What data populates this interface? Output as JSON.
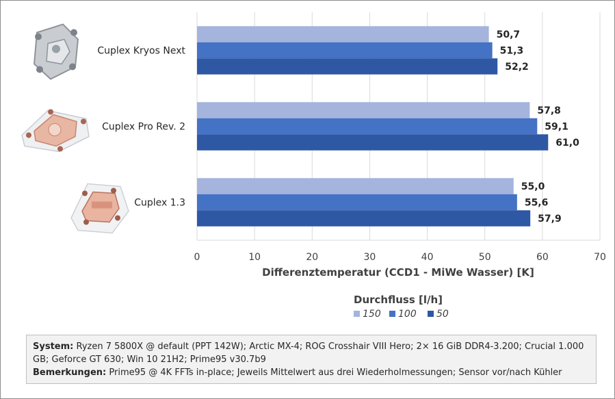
{
  "chart_data": {
    "type": "bar",
    "orientation": "horizontal",
    "categories": [
      "Cuplex Kryos Next",
      "Cuplex Pro Rev. 2",
      "Cuplex 1.3"
    ],
    "series": [
      {
        "name": "150",
        "values": [
          50.7,
          57.8,
          55.0
        ],
        "labels": [
          "50,7",
          "57,8",
          "55,0"
        ],
        "color": "#a5b4dd"
      },
      {
        "name": "100",
        "values": [
          51.3,
          59.1,
          55.6
        ],
        "labels": [
          "51,3",
          "59,1",
          "55,6"
        ],
        "color": "#4472c4"
      },
      {
        "name": "50",
        "values": [
          52.2,
          61.0,
          57.9
        ],
        "labels": [
          "52,2",
          "61,0",
          "57,9"
        ],
        "color": "#2f58a4"
      }
    ],
    "xlabel": "Differenztemperatur (CCD1 - MiWe Wasser) [K]",
    "xlim": [
      0,
      70
    ],
    "xticks": [
      0,
      10,
      20,
      30,
      40,
      50,
      60,
      70
    ],
    "grid": true,
    "legend_title": "Durchfluss [l/h]",
    "legend_position": "bottom-center"
  },
  "product_images": [
    {
      "name": "cuplex-kryos-next",
      "colors": [
        "#c9ccd1",
        "#8f949b"
      ]
    },
    {
      "name": "cuplex-pro-rev2",
      "colors": [
        "#e8b7a3",
        "#c9846d"
      ]
    },
    {
      "name": "cuplex-1-3",
      "colors": [
        "#e9b4a0",
        "#b8735f"
      ]
    }
  ],
  "notes": {
    "system_label": "System:",
    "system_text": "Ryzen 7 5800X @ default (PPT 142W); Arctic MX-4; ROG Crosshair VIII Hero; 2× 16 GiB DDR4-3.200; Crucial 1.000 GB; Geforce GT 630; Win 10 21H2; Prime95 v30.7b9",
    "remarks_label": "Bemerkungen:",
    "remarks_text": "Prime95 @ 4K FFTs in-place; Jeweils Mittelwert aus drei Wiederholmessungen; Sensor vor/nach Kühler"
  }
}
